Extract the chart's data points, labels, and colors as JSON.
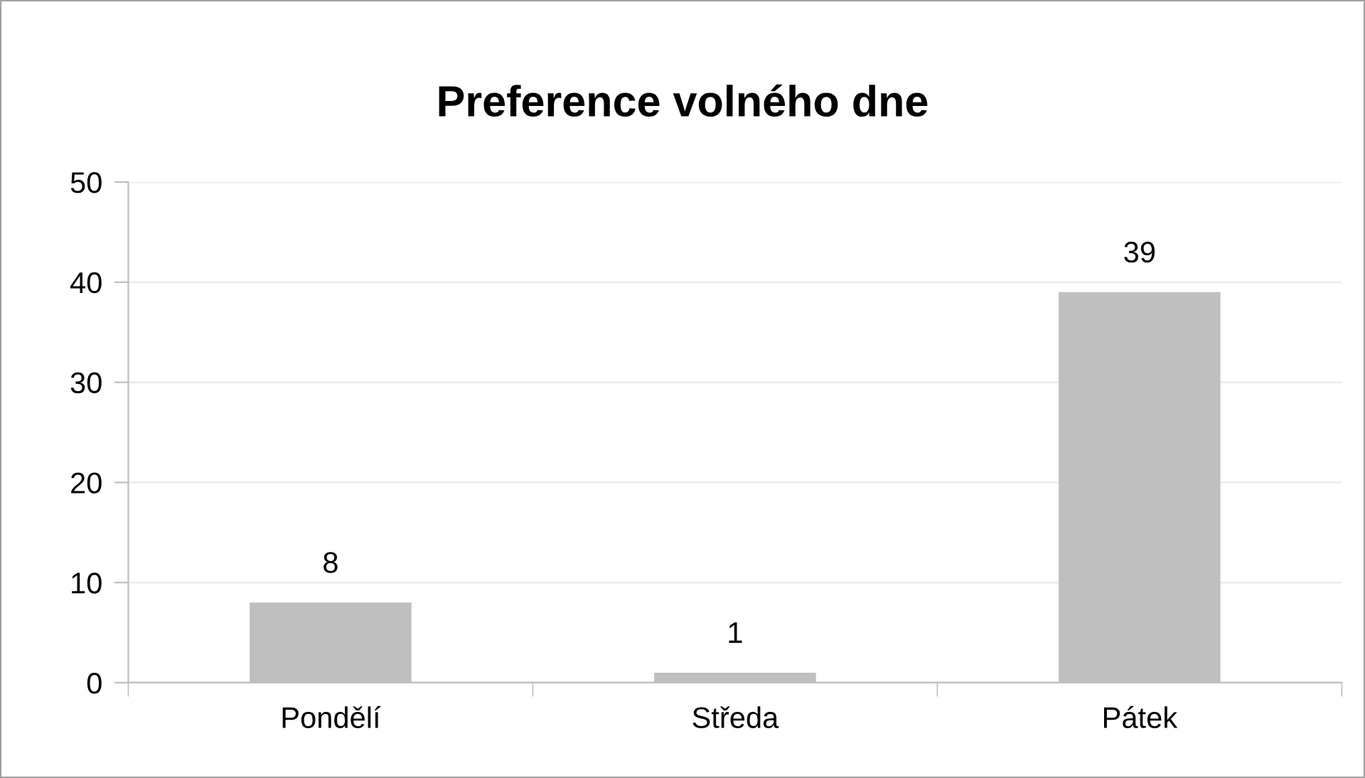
{
  "chart_data": {
    "type": "bar",
    "title": "Preference volného dne",
    "categories": [
      "Pondělí",
      "Středa",
      "Pátek"
    ],
    "values": [
      8,
      1,
      39
    ],
    "color": "#bfbfbf",
    "ylim": [
      0,
      50
    ],
    "yticks": [
      0,
      10,
      20,
      30,
      40,
      50
    ],
    "grid": "y",
    "data_labels": true
  }
}
